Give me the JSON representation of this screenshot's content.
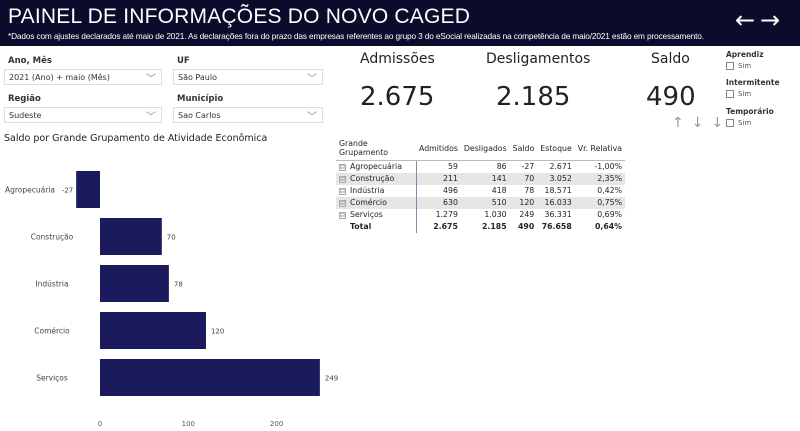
{
  "header": {
    "title": "PAINEL DE INFORMAÇÕES DO NOVO CAGED",
    "subtitle": "*Dados com ajustes declarados até maio de 2021. As declarações fora do prazo das empresas referentes ao grupo 3 do eSocial realizadas na competência de maio/2021 estão em processamento.",
    "back_icon": "←",
    "forward_icon": "→"
  },
  "filters": {
    "ano_mes": {
      "label": "Ano, Mês",
      "value": "2021 (Ano) + maio (Mês)"
    },
    "uf": {
      "label": "UF",
      "value": "São Paulo"
    },
    "regiao": {
      "label": "Região",
      "value": "Sudeste"
    },
    "municipio": {
      "label": "Município",
      "value": "Sao Carlos"
    },
    "chevron": "﹀"
  },
  "kpis": {
    "admissoes": {
      "label": "Admissões",
      "value": "2.675"
    },
    "desligamentos": {
      "label": "Desligamentos",
      "value": "2.185"
    },
    "saldo": {
      "label": "Saldo",
      "value": "490"
    }
  },
  "slicers": {
    "aprendiz": {
      "title": "Aprendiz",
      "option": "Sim"
    },
    "intermitente": {
      "title": "Intermitente",
      "option": "Sim"
    },
    "temporario": {
      "title": "Temporário",
      "option": "Sim"
    }
  },
  "drill": {
    "up": "↑",
    "down": "↓",
    "drill_down": "↓"
  },
  "table": {
    "headers": [
      "Grande Grupamento",
      "Admitidos",
      "Desligados",
      "Saldo",
      "Estoque",
      "Vr. Relativa"
    ],
    "rows": [
      [
        "Agropecuária",
        "59",
        "86",
        "-27",
        "2.671",
        "-1,00%"
      ],
      [
        "Construção",
        "211",
        "141",
        "70",
        "3.052",
        "2,35%"
      ],
      [
        "Indústria",
        "496",
        "418",
        "78",
        "18.571",
        "0,42%"
      ],
      [
        "Comércio",
        "630",
        "510",
        "120",
        "16.033",
        "0,75%"
      ],
      [
        "Serviços",
        "1.279",
        "1.030",
        "249",
        "36.331",
        "0,69%"
      ]
    ],
    "total": [
      "Total",
      "2.675",
      "2.185",
      "490",
      "76.658",
      "0,64%"
    ],
    "expand_icon": "⊟"
  },
  "chart_data": {
    "type": "bar",
    "orientation": "horizontal",
    "title": "Saldo por Grande Grupamento de Atividade Econômica",
    "categories": [
      "Agropecuária",
      "Construção",
      "Indústria",
      "Comércio",
      "Serviços"
    ],
    "values": [
      -27,
      70,
      78,
      120,
      249
    ],
    "labels": [
      "-27",
      "70",
      "78",
      "120",
      "249"
    ],
    "xticks": [
      "0",
      "100",
      "200"
    ],
    "xlim": [
      -40,
      250
    ],
    "color": "#1b1a5c"
  }
}
